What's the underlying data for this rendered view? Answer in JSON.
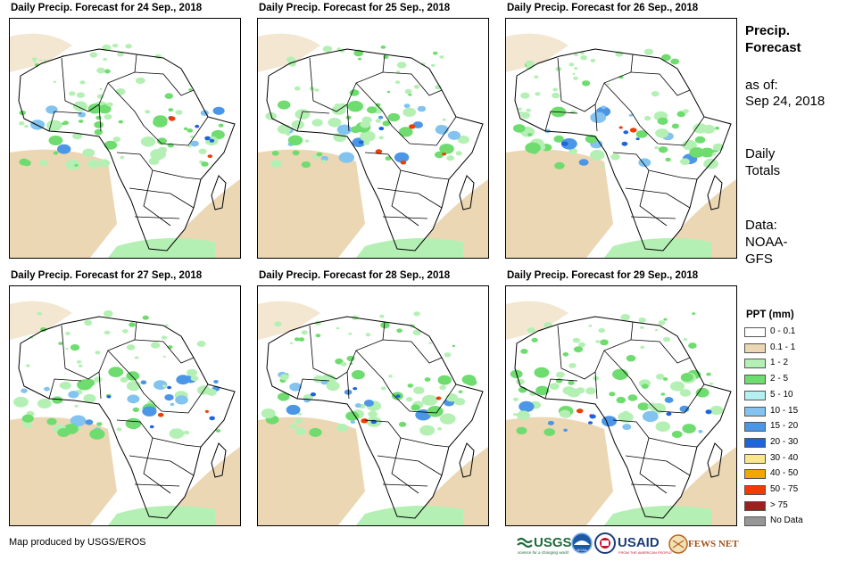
{
  "panels": [
    {
      "title": "Daily Precip. Forecast for 24  Sep., 2018"
    },
    {
      "title": "Daily Precip. Forecast for 25  Sep., 2018"
    },
    {
      "title": "Daily Precip. Forecast for 26  Sep., 2018"
    },
    {
      "title": "Daily Precip. Forecast for 27  Sep., 2018"
    },
    {
      "title": "Daily Precip. Forecast for 28  Sep., 2018"
    },
    {
      "title": "Daily Precip. Forecast for 29  Sep., 2018"
    }
  ],
  "sidebar": {
    "title_line1": "Precip.",
    "title_line2": "Forecast",
    "asof_label": "as of:",
    "asof_date": "Sep 24, 2018",
    "totals_line1": "Daily",
    "totals_line2": "Totals",
    "data_line1": "Data:",
    "data_line2": "NOAA-",
    "data_line3": "GFS"
  },
  "legend": {
    "title": "PPT (mm)",
    "items": [
      {
        "label": "0 - 0.1",
        "color": "#ffffff"
      },
      {
        "label": "0.1 - 1",
        "color": "#ebd7b4"
      },
      {
        "label": "1 - 2",
        "color": "#b4f0b4"
      },
      {
        "label": "2 - 5",
        "color": "#6edc6e"
      },
      {
        "label": "5 - 10",
        "color": "#b4f0f0"
      },
      {
        "label": "10 - 15",
        "color": "#82c3f0"
      },
      {
        "label": "15 - 20",
        "color": "#4b96e6"
      },
      {
        "label": "20 - 30",
        "color": "#1e64dc"
      },
      {
        "label": "30 - 40",
        "color": "#fae68c"
      },
      {
        "label": "40 - 50",
        "color": "#f5a500"
      },
      {
        "label": "50 - 75",
        "color": "#f03c00"
      },
      {
        "label": "> 75",
        "color": "#a01e1e"
      },
      {
        "label": "No Data",
        "color": "#969696"
      }
    ]
  },
  "footer": {
    "credit": "Map produced by USGS/EROS",
    "logos": {
      "usgs": "USGS",
      "usgs_tagline": "science for a changing world",
      "noaa": "NOAA",
      "usaid": "USAID",
      "usaid_tagline": "FROM THE AMERICAN PEOPLE",
      "fewsnet": "FEWS NET"
    }
  }
}
